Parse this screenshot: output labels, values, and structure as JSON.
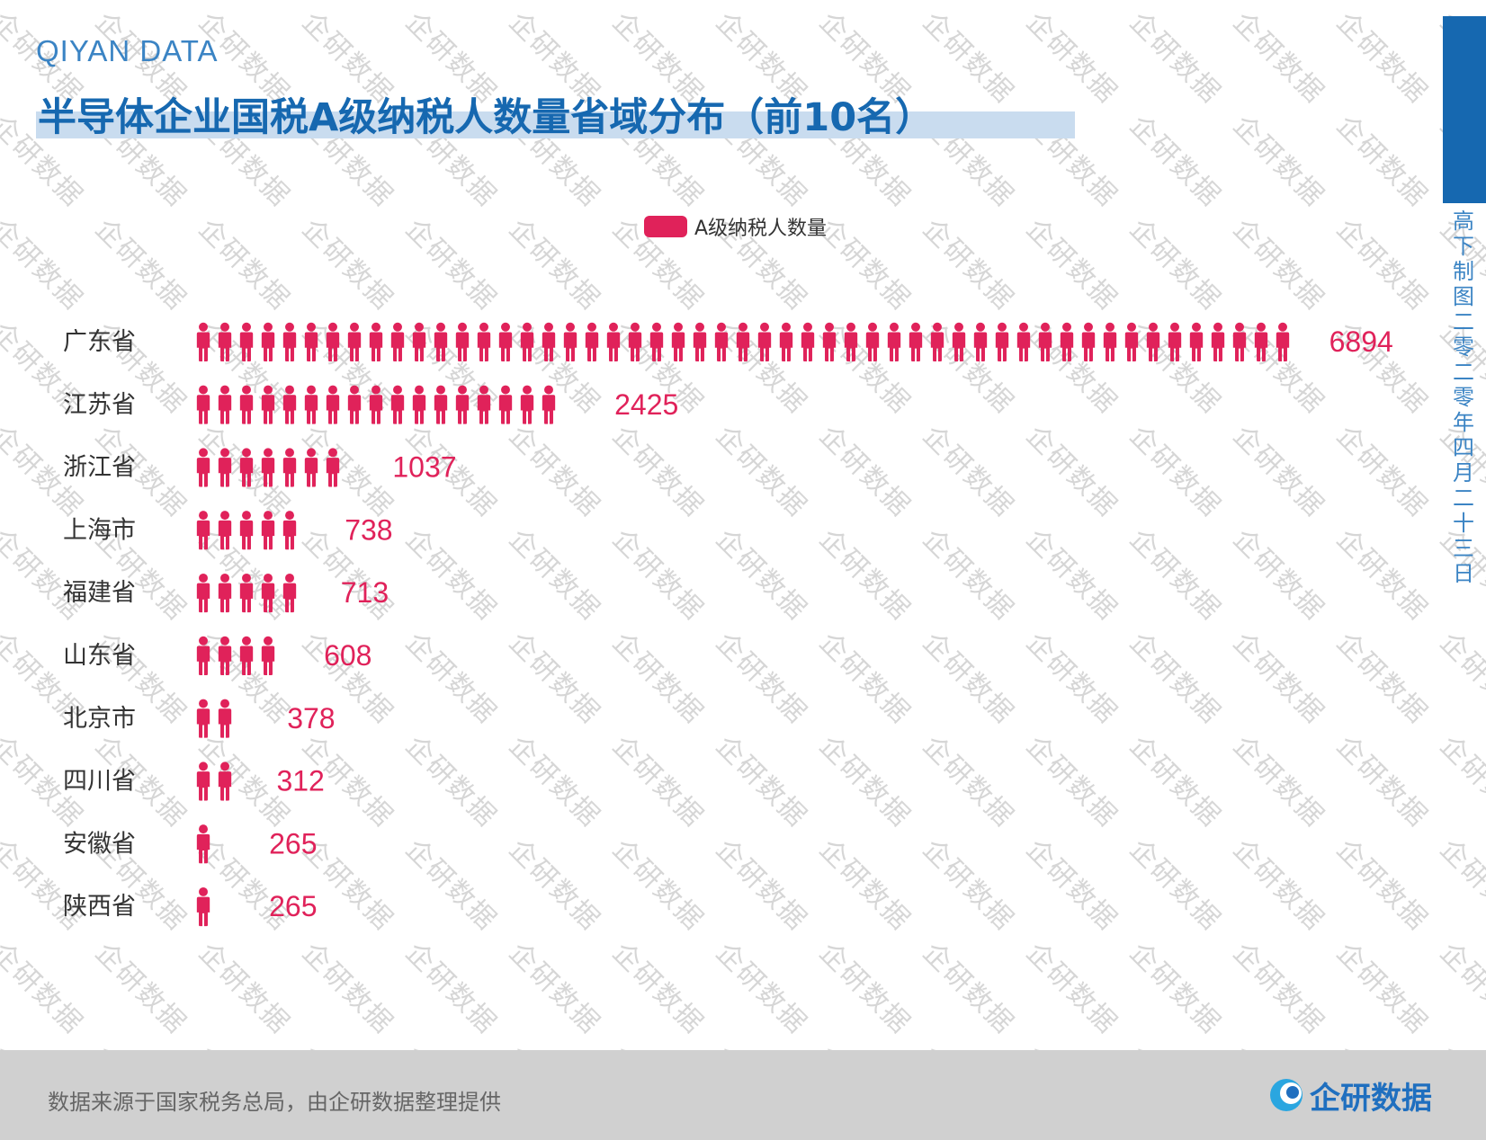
{
  "header": {
    "brand": "QIYAN DATA",
    "title": "半导体企业国税A级纳税人数量省域分布（前10名）"
  },
  "side_caption": "高下制图 二零二零年四月二十三日",
  "watermark_text": "企研数据",
  "footer": {
    "source": "数据来源于国家税务总局，由企研数据整理提供",
    "logo_text": "企研数据"
  },
  "colors": {
    "accent": "#e0225a",
    "brand_blue": "#1668b0",
    "label_text": "#333333"
  },
  "icon": "person-icon",
  "chart_data": {
    "type": "bar",
    "orientation": "horizontal",
    "style": "pictograph",
    "legend": [
      "A级纳税人数量"
    ],
    "legend_position": "top",
    "categories": [
      "广东省",
      "江苏省",
      "浙江省",
      "上海市",
      "福建省",
      "山东省",
      "北京市",
      "四川省",
      "安徽省",
      "陕西省"
    ],
    "series": [
      {
        "name": "A级纳税人数量",
        "values": [
          6894,
          2425,
          1037,
          738,
          713,
          608,
          378,
          312,
          265,
          265
        ]
      }
    ],
    "units_per_icon": 135,
    "grid": false
  }
}
